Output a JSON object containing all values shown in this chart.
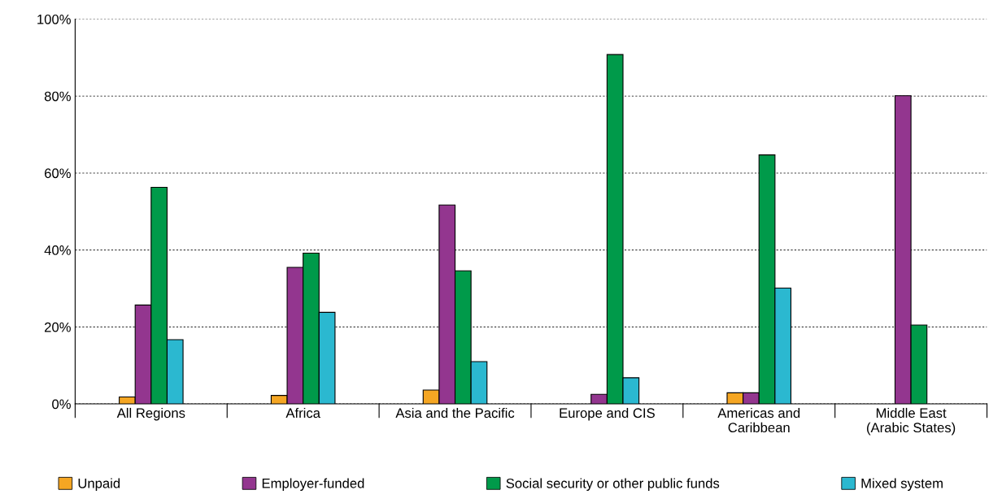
{
  "chart_data": {
    "type": "bar",
    "categories": [
      "All Regions",
      "Africa",
      "Asia and the Pacific",
      "Europe and CIS",
      "Americas and\nCaribbean",
      "Middle East\n(Arabic States)"
    ],
    "series": [
      {
        "name": "Unpaid",
        "color": "#f5a623",
        "values": [
          1.8,
          2.2,
          3.6,
          null,
          2.9,
          null
        ]
      },
      {
        "name": "Employer-funded",
        "color": "#93368f",
        "values": [
          25.7,
          35.5,
          51.7,
          2.5,
          2.9,
          80.1
        ]
      },
      {
        "name": "Social security or other public funds",
        "color": "#009a4a",
        "values": [
          56.3,
          39.2,
          34.6,
          90.8,
          64.7,
          20.5
        ]
      },
      {
        "name": "Mixed system",
        "color": "#2bb8d0",
        "values": [
          16.7,
          23.8,
          11.0,
          6.8,
          30.1,
          null
        ]
      }
    ],
    "ylim": [
      0,
      100
    ],
    "yticks": [
      {
        "value": 0,
        "label": "0%"
      },
      {
        "value": 20,
        "label": "20%"
      },
      {
        "value": 40,
        "label": "40%"
      },
      {
        "value": 60,
        "label": "60%"
      },
      {
        "value": 80,
        "label": "80%"
      },
      {
        "value": 100,
        "label": "100%"
      }
    ],
    "grid": "y",
    "legend": "bottom"
  }
}
